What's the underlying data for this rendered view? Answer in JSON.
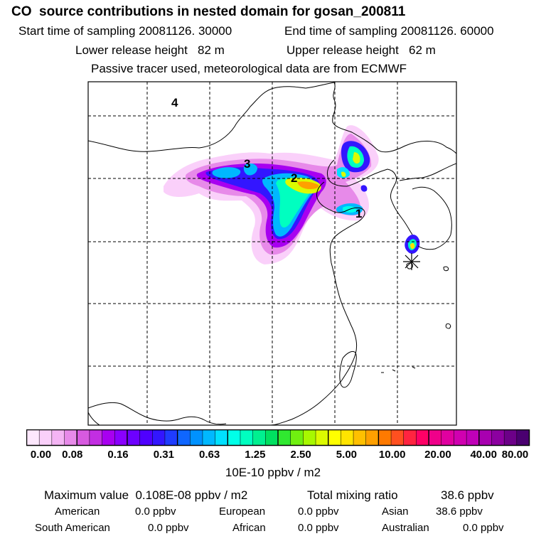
{
  "title": "CO  source contributions in nested domain for gosan_200811",
  "header": {
    "start_time": "Start time of sampling 20081126. 30000",
    "end_time": "End time of sampling 20081126. 60000",
    "lower_height": "Lower release height   82 m",
    "upper_height": "Upper release height   62 m",
    "tracer_note": "Passive tracer used, meteorological data are from ECMWF"
  },
  "map": {
    "region_labels": [
      "1",
      "2",
      "3",
      "4"
    ],
    "receptor_marker": "gosan-asterisk"
  },
  "colorbar": {
    "tick_labels": [
      "0.00",
      "0.08",
      "0.16",
      "0.31",
      "0.63",
      "1.25",
      "2.50",
      "5.00",
      "10.00",
      "20.00",
      "40.00",
      "80.00"
    ],
    "unit": "10E-10 ppbv / m2",
    "colors": [
      "#ffffff",
      "#fde8fd",
      "#fad0fa",
      "#f4b4f4",
      "#e78ae9",
      "#d75ae0",
      "#c22ee2",
      "#a800f0",
      "#8a00ff",
      "#6d00ff",
      "#4f00ff",
      "#3316ff",
      "#1f3cff",
      "#0f66ff",
      "#0092ff",
      "#00b8ff",
      "#00e0ff",
      "#00ffe8",
      "#00ffc0",
      "#00f090",
      "#00e060",
      "#30e830",
      "#70f010",
      "#a8f800",
      "#dcfa00",
      "#ffff00",
      "#ffe400",
      "#ffc000",
      "#ffa000",
      "#ff7a00",
      "#ff5020",
      "#ff2440",
      "#ff0066",
      "#f0008a",
      "#e000a0",
      "#d000b0",
      "#c000b8",
      "#a800b0",
      "#8c00a0",
      "#6c0088",
      "#4a0070"
    ]
  },
  "stats": {
    "max_label": "Maximum value  0.108E-08 ppbv / m2",
    "total_label": "Total mixing ratio",
    "total_value": "38.6 ppbv",
    "american_label": "American",
    "american_value": "0.0 ppbv",
    "european_label": "European",
    "european_value": "0.0 ppbv",
    "asian_label": "Asian",
    "asian_value": "38.6 ppbv",
    "south_american_label": "South American",
    "south_american_value": "0.0 ppbv",
    "african_label": "African",
    "african_value": "0.0 ppbv",
    "australian_label": "Australian",
    "australian_value": "0.0 ppbv"
  }
}
